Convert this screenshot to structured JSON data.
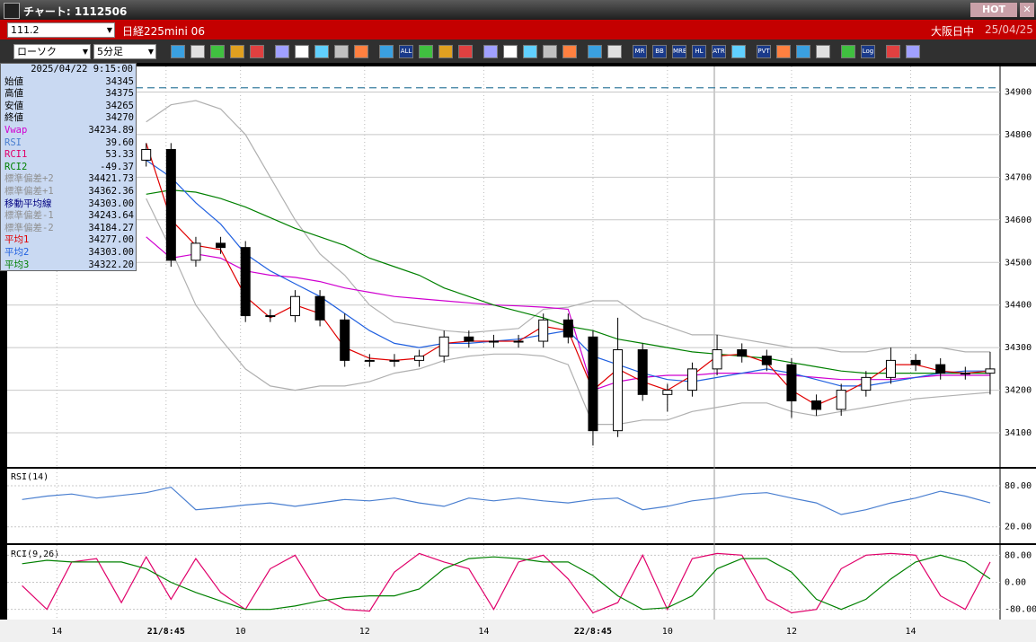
{
  "window": {
    "title": "チャート: 1112506",
    "hot": "HOT"
  },
  "header": {
    "code": "111.2",
    "instrument": "日経225mini 06",
    "market": "大阪日中",
    "date": "25/04/25"
  },
  "toolbar": {
    "chart_style": "ローソク",
    "interval": "5分足",
    "icon_labels": [
      "ALL",
      "MR",
      "BB",
      "MRE",
      "HL",
      "ATR",
      "PVT",
      "Log"
    ]
  },
  "info": {
    "time": "2025/04/22 9:15:00",
    "rows": [
      {
        "label": "始値",
        "value": "34345",
        "color": "#000000"
      },
      {
        "label": "高値",
        "value": "34375",
        "color": "#000000"
      },
      {
        "label": "安値",
        "value": "34265",
        "color": "#000000"
      },
      {
        "label": "終値",
        "value": "34270",
        "color": "#000000"
      },
      {
        "label": "Vwap",
        "value": "34234.89",
        "color": "#d000d0"
      },
      {
        "label": "RSI",
        "value": "39.60",
        "color": "#4a7fd0"
      },
      {
        "label": "RCI1",
        "value": "53.33",
        "color": "#e0006a"
      },
      {
        "label": "RCI2",
        "value": "-49.37",
        "color": "#008000"
      },
      {
        "label": "標準偏差+2",
        "value": "34421.73",
        "color": "#909090"
      },
      {
        "label": "標準偏差+1",
        "value": "34362.36",
        "color": "#909090"
      },
      {
        "label": "移動平均線",
        "value": "34303.00",
        "color": "#000080"
      },
      {
        "label": "標準偏差-1",
        "value": "34243.64",
        "color": "#909090"
      },
      {
        "label": "標準偏差-2",
        "value": "34184.27",
        "color": "#909090"
      },
      {
        "label": "平均1",
        "value": "34277.00",
        "color": "#e00000"
      },
      {
        "label": "平均2",
        "value": "34303.00",
        "color": "#2060e0"
      },
      {
        "label": "平均3",
        "value": "34322.20",
        "color": "#008000"
      }
    ]
  },
  "chart_data": [
    {
      "type": "candlestick",
      "xlim": [
        0,
        200
      ],
      "ylim": [
        34020,
        34960
      ],
      "yticks": [
        34100,
        34200,
        34300,
        34400,
        34500,
        34600,
        34700,
        34800,
        34900
      ],
      "grid": true,
      "x": [
        3,
        8,
        13,
        18,
        23,
        28,
        33,
        38,
        43,
        48,
        53,
        58,
        63,
        68,
        73,
        78,
        83,
        88,
        93,
        98,
        103,
        108,
        113,
        118,
        123,
        128,
        133,
        138,
        143,
        148,
        153,
        158,
        163,
        168,
        173,
        178,
        183,
        188,
        193,
        198
      ],
      "open": [
        null,
        null,
        null,
        null,
        null,
        34740,
        34765,
        34505,
        34545,
        34535,
        34375,
        34375,
        34420,
        34365,
        34270,
        34270,
        34270,
        34280,
        34325,
        34315,
        34315,
        34315,
        34365,
        34325,
        34105,
        34295,
        34190,
        34200,
        34250,
        34295,
        34280,
        34260,
        34175,
        34155,
        34200,
        34230,
        34270,
        34260,
        34240,
        34240
      ],
      "high": [
        null,
        null,
        null,
        null,
        null,
        34780,
        34780,
        34560,
        34560,
        34550,
        34390,
        34435,
        34435,
        34380,
        34285,
        34285,
        34295,
        34340,
        34340,
        34330,
        34330,
        34380,
        34380,
        34340,
        34370,
        34310,
        34215,
        34265,
        34330,
        34310,
        34295,
        34275,
        34190,
        34215,
        34245,
        34300,
        34285,
        34275,
        34255,
        34290
      ],
      "low": [
        null,
        null,
        null,
        null,
        null,
        34725,
        34490,
        34490,
        34520,
        34360,
        34360,
        34360,
        34350,
        34255,
        34255,
        34255,
        34255,
        34265,
        34300,
        34300,
        34300,
        34300,
        34310,
        34070,
        34090,
        34175,
        34150,
        34185,
        34235,
        34265,
        34245,
        34135,
        34140,
        34140,
        34185,
        34215,
        34245,
        34225,
        34225,
        34190
      ],
      "close": [
        null,
        null,
        null,
        null,
        null,
        34765,
        34505,
        34545,
        34535,
        34375,
        34375,
        34420,
        34365,
        34270,
        34270,
        34270,
        34280,
        34325,
        34315,
        34315,
        34315,
        34365,
        34325,
        34105,
        34295,
        34190,
        34200,
        34250,
        34295,
        34280,
        34260,
        34175,
        34155,
        34200,
        34230,
        34270,
        34260,
        34240,
        34240,
        34250
      ],
      "up_color": "#ffffff",
      "down_color": "#000000",
      "level": 34910,
      "level_color": "#3a7fa0",
      "series": [
        {
          "color": "#b0b0b0",
          "values": [
            null,
            null,
            null,
            null,
            null,
            34830,
            34870,
            34880,
            34860,
            34800,
            34700,
            34600,
            34520,
            34470,
            34400,
            34360,
            34350,
            34340,
            34335,
            34340,
            34345,
            34390,
            34395,
            34410,
            34410,
            34370,
            34350,
            34330,
            34330,
            34320,
            34310,
            34300,
            34300,
            34290,
            34290,
            34300,
            34300,
            34300,
            34290,
            34290
          ]
        },
        {
          "color": "#b0b0b0",
          "values": [
            null,
            null,
            null,
            null,
            null,
            34650,
            34530,
            34400,
            34320,
            34250,
            34210,
            34200,
            34210,
            34210,
            34220,
            34240,
            34250,
            34270,
            34280,
            34285,
            34285,
            34280,
            34260,
            34120,
            34120,
            34130,
            34130,
            34150,
            34160,
            34170,
            34170,
            34150,
            34140,
            34150,
            34160,
            34170,
            34180,
            34185,
            34190,
            34195
          ]
        },
        {
          "color": "#d000d0",
          "values": [
            null,
            null,
            null,
            null,
            null,
            34560,
            34510,
            34520,
            34510,
            34480,
            34470,
            34465,
            34455,
            34440,
            34430,
            34420,
            34415,
            34410,
            34405,
            34400,
            34398,
            34395,
            34390,
            34200,
            34220,
            34230,
            34235,
            34235,
            34240,
            34240,
            34240,
            34235,
            34230,
            34225,
            34225,
            34225,
            34230,
            34235,
            34235,
            34235
          ]
        },
        {
          "color": "#008000",
          "values": [
            null,
            null,
            null,
            null,
            null,
            34660,
            34670,
            34665,
            34650,
            34630,
            34605,
            34580,
            34560,
            34540,
            34510,
            34490,
            34470,
            34440,
            34420,
            34400,
            34385,
            34370,
            34350,
            34340,
            34320,
            34310,
            34300,
            34290,
            34285,
            34280,
            34275,
            34265,
            34255,
            34245,
            34240,
            34240,
            34240,
            34240,
            34240,
            34240
          ]
        },
        {
          "color": "#2060e0",
          "values": [
            null,
            null,
            null,
            null,
            null,
            34740,
            34700,
            34640,
            34590,
            34520,
            34480,
            34450,
            34420,
            34380,
            34340,
            34310,
            34300,
            34310,
            34310,
            34315,
            34320,
            34330,
            34340,
            34280,
            34260,
            34240,
            34225,
            34220,
            34230,
            34240,
            34250,
            34240,
            34225,
            34210,
            34210,
            34220,
            34230,
            34240,
            34245,
            34245
          ]
        },
        {
          "color": "#e00000",
          "values": [
            null,
            null,
            null,
            null,
            null,
            34780,
            34600,
            34540,
            34530,
            34420,
            34370,
            34400,
            34380,
            34300,
            34275,
            34270,
            34275,
            34310,
            34315,
            34315,
            34315,
            34350,
            34340,
            34200,
            34250,
            34220,
            34200,
            34235,
            34280,
            34285,
            34265,
            34200,
            34165,
            34190,
            34220,
            34260,
            34260,
            34245,
            34240,
            34245
          ]
        }
      ]
    },
    {
      "type": "line",
      "title": "RSI(14)",
      "xlim": [
        0,
        200
      ],
      "ylim": [
        -4,
        105
      ],
      "yticks": [
        {
          "value": 80,
          "label": "80.00"
        },
        {
          "value": 20,
          "label": "20.00"
        }
      ],
      "grid": true,
      "x": [
        3,
        8,
        13,
        18,
        23,
        28,
        33,
        38,
        43,
        48,
        53,
        58,
        63,
        68,
        73,
        78,
        83,
        88,
        93,
        98,
        103,
        108,
        113,
        118,
        123,
        128,
        133,
        138,
        143,
        148,
        153,
        158,
        163,
        168,
        173,
        178,
        183,
        188,
        193,
        198
      ],
      "series": [
        {
          "color": "#4a7fd0",
          "values": [
            60,
            65,
            68,
            62,
            66,
            70,
            78,
            45,
            48,
            52,
            55,
            50,
            55,
            60,
            58,
            62,
            55,
            50,
            62,
            58,
            62,
            58,
            55,
            60,
            62,
            45,
            50,
            58,
            62,
            68,
            70,
            62,
            55,
            38,
            45,
            55,
            62,
            72,
            65,
            55
          ]
        }
      ]
    },
    {
      "type": "line",
      "title": "RCI(9,26)",
      "xlim": [
        0,
        200
      ],
      "ylim": [
        -110,
        110
      ],
      "yticks": [
        {
          "value": 80,
          "label": "80.00"
        },
        {
          "value": 0,
          "label": "0.00"
        },
        {
          "value": -80,
          "label": "-80.00"
        }
      ],
      "grid": true,
      "x": [
        3,
        8,
        13,
        18,
        23,
        28,
        33,
        38,
        43,
        48,
        53,
        58,
        63,
        68,
        73,
        78,
        83,
        88,
        93,
        98,
        103,
        108,
        113,
        118,
        123,
        128,
        133,
        138,
        143,
        148,
        153,
        158,
        163,
        168,
        173,
        178,
        183,
        188,
        193,
        198
      ],
      "xticks": [
        {
          "value": 10,
          "label": "14"
        },
        {
          "value": 32,
          "label": "21/8:45"
        },
        {
          "value": 47,
          "label": "10"
        },
        {
          "value": 72,
          "label": "12"
        },
        {
          "value": 96,
          "label": "14"
        },
        {
          "value": 118,
          "label": "22/8:45"
        },
        {
          "value": 133,
          "label": "10"
        },
        {
          "value": 158,
          "label": "12"
        },
        {
          "value": 182,
          "label": "14"
        }
      ],
      "series": [
        {
          "color": "#e0006a",
          "values": [
            -10,
            -80,
            60,
            70,
            -60,
            75,
            -50,
            70,
            -30,
            -80,
            40,
            80,
            -40,
            -80,
            -85,
            30,
            85,
            60,
            40,
            -80,
            60,
            80,
            10,
            -90,
            -60,
            80,
            -80,
            70,
            85,
            80,
            -50,
            -90,
            -80,
            40,
            80,
            85,
            80,
            -40,
            -80,
            60
          ]
        },
        {
          "color": "#008000",
          "values": [
            55,
            65,
            60,
            60,
            60,
            40,
            0,
            -30,
            -55,
            -80,
            -80,
            -70,
            -55,
            -45,
            -40,
            -40,
            -20,
            40,
            70,
            75,
            70,
            60,
            60,
            20,
            -40,
            -80,
            -75,
            -40,
            40,
            70,
            70,
            30,
            -50,
            -80,
            -50,
            10,
            60,
            80,
            60,
            10
          ]
        }
      ]
    }
  ]
}
